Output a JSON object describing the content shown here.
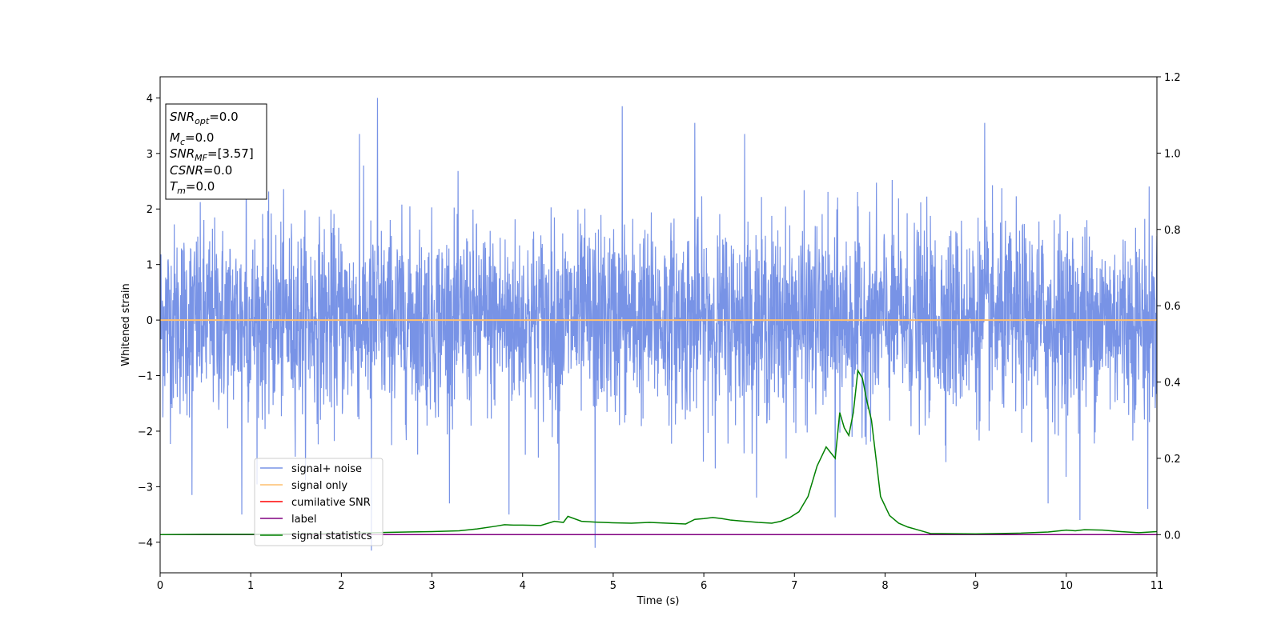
{
  "chart_data": {
    "type": "line",
    "xlabel": "Time (s)",
    "ylabel": "Whitened strain",
    "xlim": [
      0,
      11
    ],
    "ylim": [
      -4.55,
      4.38
    ],
    "y2lim": [
      -0.1,
      1.2
    ],
    "x_ticks": [
      "0",
      "1",
      "2",
      "3",
      "4",
      "5",
      "6",
      "7",
      "8",
      "9",
      "10",
      "11"
    ],
    "y_ticks": [
      "4",
      "3",
      "2",
      "1",
      "0",
      "−1",
      "−2",
      "−3",
      "−4"
    ],
    "y2_ticks": [
      "1.2",
      "1.0",
      "0.8",
      "0.6",
      "0.4",
      "0.2",
      "0.0"
    ],
    "grid": false,
    "legend_position": "lower left",
    "colors": {
      "noise": "#7893e6",
      "signal": "#fdbf6f",
      "csnr": "#ff0000",
      "label": "#800080",
      "stats": "#008000"
    },
    "stats_box": {
      "snr_opt": {
        "base": "SNR",
        "sub": "opt",
        "rest": "=0.0"
      },
      "mc": {
        "base": "M",
        "sub": "c",
        "rest": "=0.0"
      },
      "snr_mf": {
        "base": "SNR",
        "sub": "MF",
        "rest": "=[3.57]"
      },
      "csnr": {
        "base": "CSNR",
        "rest": "=0.0"
      },
      "tm": {
        "base": "T",
        "sub": "m",
        "rest": "=0.0"
      }
    },
    "series": [
      {
        "name": "signal+ noise",
        "axis": "left",
        "style": "noise",
        "rms": 0.85,
        "x_range": [
          0,
          11
        ],
        "peaks": [
          [
            2.4,
            4.0
          ],
          [
            5.1,
            3.85
          ],
          [
            0.95,
            3.65
          ],
          [
            5.9,
            3.55
          ],
          [
            9.1,
            3.55
          ],
          [
            2.2,
            3.35
          ],
          [
            6.45,
            3.35
          ],
          [
            4.8,
            -4.1
          ],
          [
            2.33,
            -4.15
          ],
          [
            4.4,
            -3.6
          ],
          [
            7.45,
            -3.55
          ],
          [
            10.15,
            -3.6
          ],
          [
            0.9,
            -3.5
          ],
          [
            3.85,
            -3.5
          ],
          [
            0.35,
            -3.15
          ],
          [
            10.9,
            -3.4
          ],
          [
            9.8,
            -3.3
          ]
        ]
      },
      {
        "name": "signal only",
        "axis": "left",
        "x": [
          0,
          11
        ],
        "y": [
          0,
          0
        ]
      },
      {
        "name": "cumilative SNR",
        "axis": "right",
        "x": [],
        "y": []
      },
      {
        "name": "label",
        "axis": "right",
        "x": [
          0,
          11
        ],
        "y": [
          0.0,
          0.0
        ]
      },
      {
        "name": "signal statistics",
        "axis": "right",
        "x": [
          0,
          0.5,
          1.0,
          1.5,
          2.0,
          2.5,
          3.0,
          3.3,
          3.5,
          3.7,
          3.8,
          3.9,
          4.0,
          4.2,
          4.35,
          4.45,
          4.5,
          4.65,
          4.8,
          5.0,
          5.2,
          5.4,
          5.6,
          5.8,
          5.9,
          6.0,
          6.1,
          6.2,
          6.3,
          6.4,
          6.6,
          6.75,
          6.85,
          6.95,
          7.05,
          7.15,
          7.25,
          7.35,
          7.45,
          7.5,
          7.55,
          7.6,
          7.65,
          7.7,
          7.75,
          7.8,
          7.85,
          7.9,
          7.95,
          8.05,
          8.15,
          8.25,
          8.4,
          8.5,
          9.0,
          9.5,
          9.8,
          10.0,
          10.1,
          10.2,
          10.4,
          10.6,
          10.8,
          11.0
        ],
        "y": [
          0.0,
          0.001,
          0.001,
          0.002,
          0.003,
          0.006,
          0.008,
          0.01,
          0.015,
          0.022,
          0.026,
          0.025,
          0.025,
          0.024,
          0.035,
          0.032,
          0.048,
          0.035,
          0.033,
          0.031,
          0.03,
          0.032,
          0.03,
          0.028,
          0.04,
          0.042,
          0.045,
          0.042,
          0.038,
          0.036,
          0.032,
          0.03,
          0.035,
          0.045,
          0.06,
          0.1,
          0.18,
          0.23,
          0.2,
          0.32,
          0.28,
          0.26,
          0.32,
          0.43,
          0.41,
          0.35,
          0.3,
          0.2,
          0.1,
          0.05,
          0.03,
          0.02,
          0.01,
          0.003,
          0.002,
          0.004,
          0.007,
          0.012,
          0.01,
          0.013,
          0.012,
          0.008,
          0.005,
          0.008
        ]
      }
    ]
  }
}
